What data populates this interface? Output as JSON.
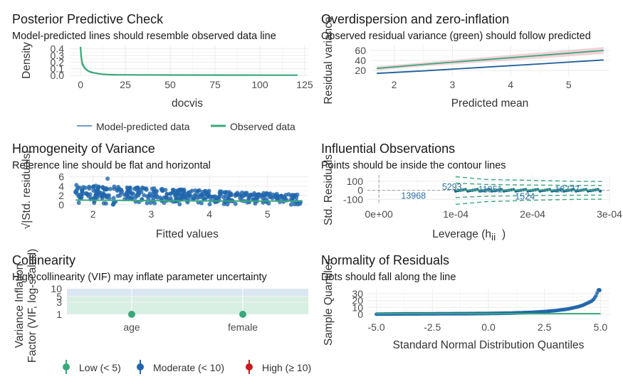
{
  "colors": {
    "green": "#3aa87c",
    "blue": "#1f5f99",
    "mid": "#2166ac",
    "red": "#cb181d",
    "pink": "#e8aeb7",
    "grid": "#ebebeb"
  },
  "chart_data": [
    {
      "id": "ppc",
      "type": "line",
      "title": "Posterior Predictive Check",
      "subtitle": "Model-predicted lines should resemble observed data line",
      "xlabel": "docvis",
      "ylabel": "Density",
      "xlim": [
        -6,
        127
      ],
      "ylim": [
        0,
        0.45
      ],
      "xticks": [
        0,
        25,
        50,
        75,
        100,
        125
      ],
      "yticks": [
        0.0,
        0.1,
        0.2,
        0.3,
        0.4
      ],
      "legend": [
        "Model-predicted data",
        "Observed data"
      ],
      "series": [
        {
          "name": "Model-predicted data",
          "x": [
            0,
            1,
            2,
            3,
            4,
            5,
            6,
            8,
            10,
            12,
            15,
            20,
            30,
            50,
            80,
            121
          ],
          "y": [
            0.32,
            0.2,
            0.14,
            0.1,
            0.08,
            0.065,
            0.055,
            0.04,
            0.03,
            0.022,
            0.016,
            0.012,
            0.01,
            0.008,
            0.006,
            0.005
          ]
        },
        {
          "name": "Observed data",
          "x": [
            0,
            0.3,
            1,
            2,
            3,
            4,
            5,
            6,
            8,
            10,
            12,
            15,
            20,
            30,
            50,
            80,
            121
          ],
          "y": [
            0.43,
            0.3,
            0.17,
            0.12,
            0.09,
            0.07,
            0.055,
            0.045,
            0.035,
            0.025,
            0.018,
            0.012,
            0.009,
            0.007,
            0.005,
            0.004,
            0.003
          ]
        }
      ]
    },
    {
      "id": "od",
      "type": "line",
      "title": "Overdispersion and zero-inflation",
      "subtitle": "Observed residual variance (green) should follow predicted",
      "xlabel": "Predicted mean",
      "ylabel": "Residual variance",
      "xlim": [
        1.6,
        5.7
      ],
      "ylim": [
        10,
        70
      ],
      "xticks": [
        2,
        3,
        4,
        5
      ],
      "yticks": [
        20,
        40,
        60
      ],
      "series": [
        {
          "name": "observed",
          "x": [
            1.7,
            2.5,
            3.5,
            4.5,
            5.6
          ],
          "y": [
            24,
            32,
            41,
            50,
            60
          ],
          "band": [
            4,
            4,
            5,
            6,
            7
          ]
        },
        {
          "name": "predicted",
          "x": [
            1.7,
            2.5,
            3.5,
            4.5,
            5.6
          ],
          "y": [
            14,
            19,
            26,
            33,
            41
          ]
        }
      ]
    },
    {
      "id": "hv",
      "type": "scatter",
      "title": "Homogeneity of Variance",
      "subtitle": "Reference line should be flat and horizontal",
      "xlabel": "Fitted values",
      "ylabel": "√|Std. residuals|",
      "xlim": [
        1.6,
        5.7
      ],
      "ylim": [
        0,
        6.4
      ],
      "xticks": [
        2,
        3,
        4,
        5
      ],
      "yticks": [
        0,
        2,
        4,
        6
      ],
      "ref_line": {
        "x": [
          1.7,
          3.0,
          4.5,
          5.6
        ],
        "y": [
          1.0,
          0.9,
          0.8,
          0.8
        ]
      }
    },
    {
      "id": "io",
      "type": "scatter",
      "title": "Influential Observations",
      "subtitle": "Points should be inside the contour lines",
      "xlabel": "Leverage (hii)",
      "ylabel": "Std. Residuals",
      "xlim": [
        -1.5e-05,
        0.0003
      ],
      "ylim": [
        -160,
        170
      ],
      "xticks": [
        0,
        0.0001,
        0.0002,
        0.0003
      ],
      "xticklabels": [
        "0e+00",
        "1e-04",
        "2e-04",
        "3e-04"
      ],
      "yticks": [
        -100,
        0,
        100
      ],
      "labels": [
        {
          "text": "5293",
          "x": 9.5e-05,
          "y": 35
        },
        {
          "text": "11951",
          "x": 0.000145,
          "y": 10
        },
        {
          "text": "18777",
          "x": 0.000245,
          "y": 10
        },
        {
          "text": "13968",
          "x": 4.5e-05,
          "y": -60
        },
        {
          "text": "1524",
          "x": 0.00019,
          "y": -70
        }
      ]
    },
    {
      "id": "col",
      "type": "scatter",
      "title": "Collinearity",
      "subtitle": "High collinearity (VIF) may inflate parameter uncertainty",
      "ylabel": "Variance Inflation Factor (VIF, log-scaled)",
      "categories": [
        "age",
        "female"
      ],
      "values": [
        1.0,
        1.0
      ],
      "yticks": [
        1,
        3,
        5,
        10
      ],
      "ylim": [
        1,
        10
      ],
      "legend": [
        "Low (< 5)",
        "Moderate (< 10)",
        "High (≥ 10)"
      ]
    },
    {
      "id": "nr",
      "type": "scatter",
      "title": "Normality of Residuals",
      "subtitle": "Dots should fall along the line",
      "xlabel": "Standard Normal Distribution Quantiles",
      "ylabel": "Sample Quantiles",
      "xlim": [
        -5.4,
        5.4
      ],
      "ylim": [
        -2,
        37
      ],
      "xticks": [
        -5.0,
        -2.5,
        0.0,
        2.5,
        5.0
      ],
      "xticklabels": [
        "-5.0",
        "-2.5",
        "0.0",
        "2.5",
        "5.0"
      ],
      "yticks": [
        0,
        10,
        20,
        30
      ],
      "ref_line": {
        "x": [
          -5.0,
          5.0
        ],
        "y": [
          1.0,
          1.0
        ]
      },
      "points": {
        "x": [
          -5.0,
          -4.0,
          -2.5,
          -1.0,
          0.0,
          1.0,
          2.0,
          2.5,
          3.0,
          3.5,
          4.0,
          4.2,
          4.4,
          4.6,
          4.7,
          4.8,
          4.9
        ],
        "y": [
          0.3,
          0.6,
          0.8,
          1.0,
          1.3,
          1.8,
          3.0,
          4.0,
          5.5,
          7.5,
          11,
          13,
          16,
          19,
          22,
          27,
          35
        ]
      }
    }
  ]
}
